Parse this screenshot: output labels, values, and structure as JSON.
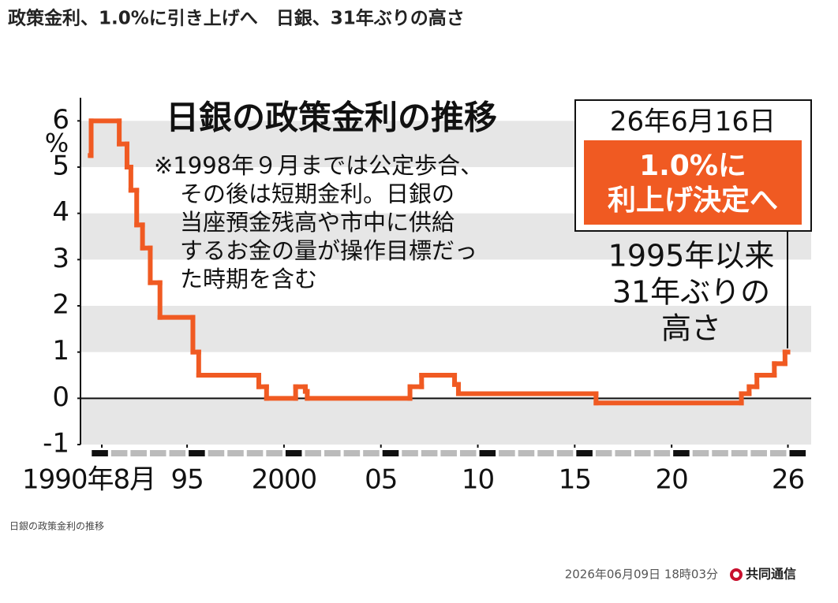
{
  "header": {
    "title": "政策金利、1.0%に引き上げへ　日銀、31年ぶりの高さ"
  },
  "caption": "日銀の政策金利の推移",
  "footer": {
    "date": "2026年06月09日 18時03分",
    "source": "共同通信"
  },
  "chart_data": {
    "type": "step",
    "title": "日銀の政策金利の推移",
    "y_label": "%",
    "note": [
      "※1998年９月までは公定歩合、",
      "その後は短期金利。日銀の",
      "当座預金残高や市中に供給",
      "するお金の量が操作目標だっ",
      "た時期を含む"
    ],
    "callout": {
      "date": "26年6月16日",
      "headline": [
        "1.0%に",
        "利上げ決定へ"
      ],
      "text": [
        "1995年以来",
        "31年ぶりの",
        "高さ"
      ]
    },
    "x": [
      1990.0,
      1990.05,
      1991.5,
      1991.9,
      1992.1,
      1992.4,
      1992.7,
      1993.1,
      1993.6,
      1995.3,
      1995.6,
      1998.7,
      1999.1,
      2000.6,
      2001.1,
      2001.2,
      2006.5,
      2007.1,
      2008.8,
      2009.0,
      2016.1,
      2023.6,
      2024.0,
      2024.4,
      2025.3,
      2025.85
    ],
    "x_end": 2026.0,
    "series": [
      {
        "name": "政策金利",
        "color": "#f05a22",
        "values": [
          5.25,
          6.0,
          5.5,
          5.0,
          4.5,
          3.75,
          3.25,
          2.5,
          1.75,
          1.0,
          0.5,
          0.25,
          0.0,
          0.25,
          0.15,
          0.0,
          0.25,
          0.5,
          0.3,
          0.1,
          -0.1,
          0.1,
          0.25,
          0.5,
          0.75,
          1.0
        ]
      }
    ],
    "xlim": [
      1989.5,
      2027.2
    ],
    "ylim": [
      -1,
      6.5
    ],
    "xticks": [
      {
        "value": 1990.6,
        "label": "1990年8月"
      },
      {
        "value": 1995,
        "label": "95"
      },
      2000,
      {
        "value": 2005,
        "label": "05"
      },
      {
        "value": 2010,
        "label": "10"
      },
      {
        "value": 2015,
        "label": "15"
      },
      {
        "value": 2020,
        "label": "20"
      },
      {
        "value": 2026,
        "label": "26"
      }
    ],
    "yticks": [
      -1,
      0,
      1,
      2,
      3,
      4,
      5,
      6
    ]
  }
}
